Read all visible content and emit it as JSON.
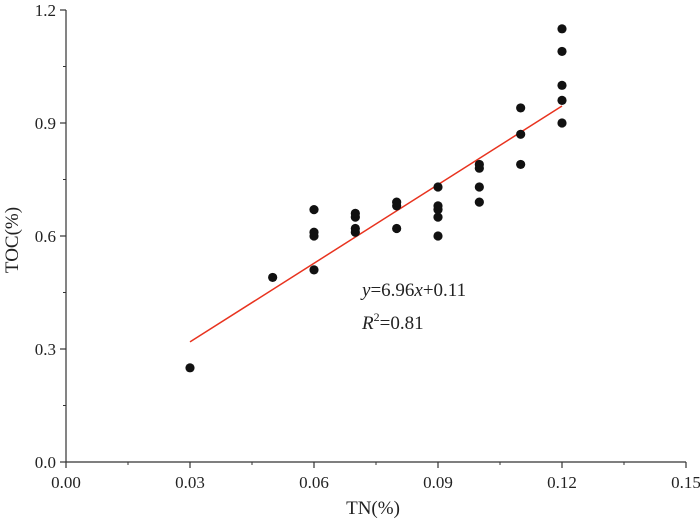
{
  "chart_data": {
    "type": "scatter",
    "xlabel": "TN(%)",
    "ylabel": "TOC(%)",
    "xlim": [
      0.0,
      0.15
    ],
    "ylim": [
      0.0,
      1.2
    ],
    "x_ticks": [
      "0.00",
      "0.03",
      "0.06",
      "0.09",
      "0.12",
      "0.15"
    ],
    "y_ticks": [
      "0.0",
      "0.3",
      "0.6",
      "0.9",
      "1.2"
    ],
    "grid": false,
    "series": [
      {
        "points": [
          {
            "x": 0.03,
            "y": 0.25
          },
          {
            "x": 0.05,
            "y": 0.49
          },
          {
            "x": 0.06,
            "y": 0.51
          },
          {
            "x": 0.06,
            "y": 0.6
          },
          {
            "x": 0.06,
            "y": 0.61
          },
          {
            "x": 0.06,
            "y": 0.67
          },
          {
            "x": 0.07,
            "y": 0.61
          },
          {
            "x": 0.07,
            "y": 0.62
          },
          {
            "x": 0.07,
            "y": 0.65
          },
          {
            "x": 0.07,
            "y": 0.66
          },
          {
            "x": 0.08,
            "y": 0.62
          },
          {
            "x": 0.08,
            "y": 0.68
          },
          {
            "x": 0.08,
            "y": 0.69
          },
          {
            "x": 0.09,
            "y": 0.6
          },
          {
            "x": 0.09,
            "y": 0.65
          },
          {
            "x": 0.09,
            "y": 0.67
          },
          {
            "x": 0.09,
            "y": 0.68
          },
          {
            "x": 0.09,
            "y": 0.73
          },
          {
            "x": 0.1,
            "y": 0.69
          },
          {
            "x": 0.1,
            "y": 0.73
          },
          {
            "x": 0.1,
            "y": 0.78
          },
          {
            "x": 0.1,
            "y": 0.79
          },
          {
            "x": 0.11,
            "y": 0.79
          },
          {
            "x": 0.11,
            "y": 0.87
          },
          {
            "x": 0.11,
            "y": 0.94
          },
          {
            "x": 0.12,
            "y": 0.9
          },
          {
            "x": 0.12,
            "y": 0.96
          },
          {
            "x": 0.12,
            "y": 1.0
          },
          {
            "x": 0.12,
            "y": 1.09
          },
          {
            "x": 0.12,
            "y": 1.15
          }
        ],
        "color": "#111111"
      }
    ],
    "fit_line": {
      "slope": 6.96,
      "intercept": 0.11,
      "x_range": [
        0.03,
        0.12
      ],
      "color": "#e8331f"
    },
    "annotation": {
      "equation_y": "y",
      "equation_x": "x",
      "equation_mid": "=6.96",
      "equation_end": "+0.11",
      "r2_R": "R",
      "r2_sup": "2",
      "r2_value": "=0.81"
    }
  }
}
